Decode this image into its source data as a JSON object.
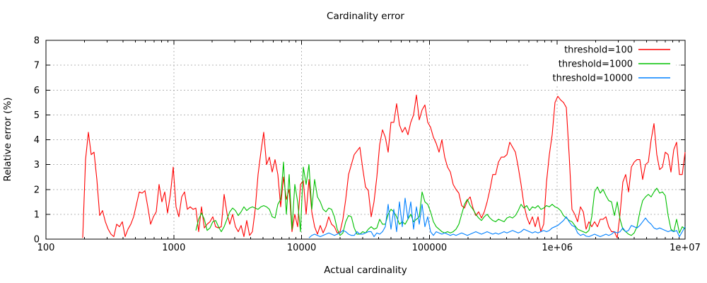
{
  "colors": {
    "background": "#ffffff",
    "axis": "#000000",
    "grid": "#b4b4b4",
    "text": "#000000"
  },
  "chart_data": {
    "type": "line",
    "title": "Cardinality error",
    "xlabel": "Actual cardinality",
    "ylabel": "Relative error (%)",
    "x_scale": "log10",
    "xlim": [
      100,
      10000000
    ],
    "ylim": [
      0,
      8
    ],
    "x_tick_labels": [
      "100",
      "1000",
      "10000",
      "100000",
      "1e+06",
      "1e+07"
    ],
    "x_tick_values": [
      100,
      1000,
      10000,
      100000,
      1000000,
      10000000
    ],
    "y_tick_values": [
      0,
      1,
      2,
      3,
      4,
      5,
      6,
      7,
      8
    ],
    "grid": true,
    "legend_position": "top-right",
    "series": [
      {
        "name": "threshold=100",
        "color": "#ff0000",
        "x_start_log10": 2.287611,
        "x_step_log10": 0.0221239,
        "y": [
          0.05,
          3.2,
          4.3,
          3.4,
          3.5,
          2.4,
          0.95,
          1.15,
          0.7,
          0.4,
          0.2,
          0.1,
          0.6,
          0.5,
          0.7,
          0.1,
          0.4,
          0.6,
          0.9,
          1.4,
          1.9,
          1.85,
          1.95,
          1.3,
          0.6,
          0.9,
          1.1,
          2.2,
          1.5,
          1.9,
          1.05,
          1.8,
          2.9,
          1.3,
          0.9,
          1.7,
          1.9,
          1.2,
          1.3,
          1.2,
          1.25,
          0.3,
          1.3,
          0.45,
          0.6,
          0.7,
          0.9,
          0.5,
          0.45,
          0.5,
          1.8,
          1.05,
          0.6,
          1.0,
          0.5,
          0.3,
          0.55,
          0.1,
          0.75,
          0.15,
          0.3,
          1.2,
          2.6,
          3.5,
          4.3,
          3.0,
          3.3,
          2.7,
          3.2,
          2.6,
          1.3,
          2.5,
          1.6,
          2.0,
          0.3,
          1.0,
          0.5,
          2.2,
          2.35,
          1.0,
          2.4,
          1.1,
          0.5,
          0.2,
          0.55,
          0.25,
          0.5,
          0.9,
          0.6,
          0.5,
          0.25,
          0.3,
          0.8,
          1.6,
          2.6,
          3.0,
          3.4,
          3.55,
          3.7,
          2.85,
          2.1,
          1.95,
          0.9,
          1.5,
          2.5,
          3.8,
          4.4,
          4.1,
          3.5,
          4.7,
          4.7,
          5.45,
          4.6,
          4.3,
          4.5,
          4.2,
          4.7,
          5.0,
          5.8,
          4.8,
          5.2,
          5.4,
          4.7,
          4.5,
          4.1,
          3.85,
          3.5,
          4.0,
          3.3,
          2.9,
          2.7,
          2.2,
          2.0,
          1.85,
          1.35,
          1.25,
          1.55,
          1.7,
          1.25,
          0.95,
          1.1,
          0.85,
          1.1,
          1.5,
          2.0,
          2.6,
          2.6,
          3.1,
          3.3,
          3.3,
          3.4,
          3.9,
          3.7,
          3.5,
          2.9,
          2.2,
          1.4,
          0.9,
          0.6,
          0.9,
          0.5,
          0.9,
          0.3,
          0.6,
          2.3,
          3.4,
          4.2,
          5.5,
          5.75,
          5.6,
          5.5,
          5.3,
          3.4,
          1.2,
          1.0,
          0.7,
          1.3,
          1.1,
          0.4,
          0.7,
          0.5,
          0.7,
          0.5,
          0.8,
          0.8,
          0.9,
          0.5,
          0.3,
          0.3,
          0.05,
          1.0,
          2.3,
          2.6,
          1.9,
          2.9,
          3.1,
          3.2,
          3.2,
          2.4,
          3.0,
          3.1,
          4.0,
          4.65,
          3.4,
          2.8,
          2.9,
          3.5,
          3.4,
          2.7,
          3.6,
          3.9,
          2.6,
          2.6,
          3.5
        ]
      },
      {
        "name": "threshold=1000",
        "color": "#00c000",
        "x_start_log10": 3.172566,
        "x_step_log10": 0.0221239,
        "y": [
          0.35,
          0.8,
          1.05,
          0.8,
          0.35,
          0.45,
          0.7,
          0.75,
          0.5,
          0.3,
          0.5,
          0.8,
          1.1,
          1.25,
          1.15,
          0.95,
          1.1,
          1.3,
          1.15,
          1.25,
          1.3,
          1.25,
          1.2,
          1.3,
          1.35,
          1.3,
          1.2,
          0.9,
          0.85,
          1.4,
          1.6,
          3.1,
          1.0,
          2.6,
          0.4,
          2.2,
          1.5,
          0.3,
          2.9,
          2.2,
          3.0,
          1.2,
          2.4,
          1.7,
          1.5,
          1.2,
          1.1,
          1.25,
          1.2,
          0.9,
          0.4,
          0.15,
          0.25,
          0.7,
          0.95,
          0.9,
          0.45,
          0.2,
          0.2,
          0.3,
          0.25,
          0.4,
          0.5,
          0.4,
          0.45,
          0.8,
          0.6,
          0.6,
          1.0,
          1.2,
          1.1,
          0.9,
          0.6,
          0.7,
          0.6,
          0.8,
          1.0,
          0.7,
          0.8,
          0.9,
          1.9,
          1.5,
          1.4,
          1.1,
          0.7,
          0.5,
          0.4,
          0.3,
          0.25,
          0.3,
          0.25,
          0.3,
          0.4,
          0.6,
          1.0,
          1.4,
          1.6,
          1.35,
          1.2,
          1.0,
          0.85,
          0.75,
          0.9,
          1.0,
          0.85,
          0.75,
          0.7,
          0.8,
          0.75,
          0.7,
          0.85,
          0.9,
          0.85,
          0.95,
          1.15,
          1.4,
          1.25,
          1.35,
          1.15,
          1.3,
          1.25,
          1.35,
          1.2,
          1.25,
          1.35,
          1.3,
          1.4,
          1.3,
          1.25,
          1.15,
          0.95,
          0.85,
          0.75,
          0.7,
          0.55,
          0.4,
          0.35,
          0.3,
          0.25,
          0.35,
          0.9,
          1.9,
          2.1,
          1.85,
          2.0,
          1.75,
          1.55,
          1.5,
          0.95,
          1.5,
          0.8,
          0.4,
          0.3,
          0.2,
          0.15,
          0.25,
          0.5,
          1.1,
          1.55,
          1.7,
          1.8,
          1.7,
          1.9,
          2.05,
          1.85,
          1.9,
          1.75,
          0.95,
          0.4,
          0.3,
          0.8,
          0.25,
          0.5,
          0.4
        ]
      },
      {
        "name": "threshold=10000",
        "color": "#0080ff",
        "x_start_log10": 4.057522,
        "x_step_log10": 0.0221239,
        "y": [
          0.05,
          0.15,
          0.2,
          0.15,
          0.1,
          0.15,
          0.2,
          0.25,
          0.2,
          0.15,
          0.2,
          0.25,
          0.35,
          0.3,
          0.2,
          0.15,
          0.15,
          0.3,
          0.2,
          0.2,
          0.25,
          0.3,
          0.3,
          0.1,
          0.25,
          0.2,
          0.3,
          0.5,
          1.4,
          0.4,
          1.2,
          0.3,
          1.5,
          0.5,
          1.65,
          0.8,
          1.5,
          0.4,
          1.3,
          0.6,
          1.4,
          0.5,
          0.9,
          0.3,
          0.15,
          0.3,
          0.25,
          0.2,
          0.25,
          0.2,
          0.15,
          0.2,
          0.15,
          0.2,
          0.25,
          0.2,
          0.15,
          0.2,
          0.25,
          0.3,
          0.25,
          0.2,
          0.25,
          0.3,
          0.25,
          0.2,
          0.25,
          0.2,
          0.25,
          0.3,
          0.25,
          0.3,
          0.35,
          0.3,
          0.25,
          0.3,
          0.4,
          0.35,
          0.3,
          0.25,
          0.3,
          0.25,
          0.3,
          0.35,
          0.3,
          0.35,
          0.45,
          0.5,
          0.55,
          0.65,
          0.75,
          0.9,
          0.7,
          0.55,
          0.5,
          0.25,
          0.15,
          0.2,
          0.12,
          0.1,
          0.15,
          0.2,
          0.15,
          0.1,
          0.15,
          0.2,
          0.15,
          0.2,
          0.3,
          0.25,
          0.3,
          0.45,
          0.3,
          0.35,
          0.55,
          0.5,
          0.45,
          0.55,
          0.7,
          0.85,
          0.7,
          0.6,
          0.45,
          0.4,
          0.45,
          0.4,
          0.35,
          0.3,
          0.35,
          0.3,
          0.35,
          0.1,
          0.3,
          0.5
        ]
      }
    ]
  }
}
